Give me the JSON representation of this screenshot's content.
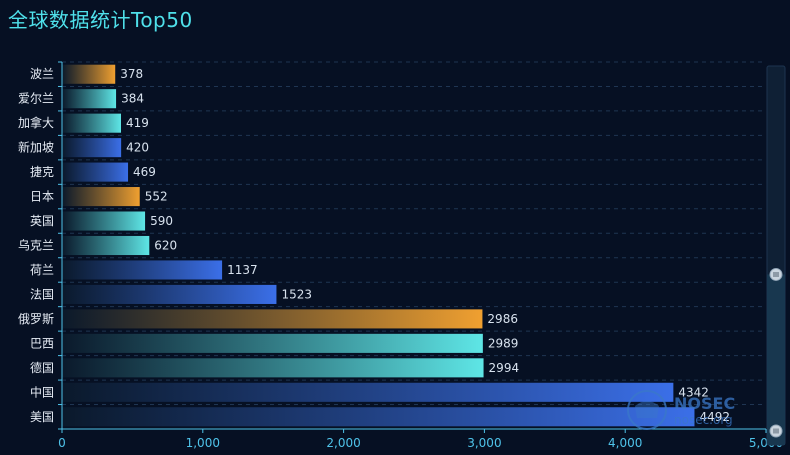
{
  "chart_data": {
    "type": "bar",
    "orientation": "horizontal",
    "title": "全球数据统计Top50",
    "categories": [
      "美国",
      "中国",
      "德国",
      "巴西",
      "俄罗斯",
      "法国",
      "荷兰",
      "乌克兰",
      "英国",
      "日本",
      "捷克",
      "新加坡",
      "加拿大",
      "爱尔兰",
      "波兰"
    ],
    "values": [
      4492,
      4342,
      2994,
      2989,
      2986,
      1523,
      1137,
      620,
      590,
      552,
      469,
      420,
      419,
      384,
      378
    ],
    "bar_colors": [
      "blue",
      "blue",
      "cyan",
      "cyan",
      "orange",
      "blue",
      "blue",
      "cyan",
      "cyan",
      "orange",
      "blue",
      "blue",
      "cyan",
      "cyan",
      "orange"
    ],
    "xlim": [
      0,
      5000
    ],
    "xticks": [
      0,
      1000,
      2000,
      3000,
      4000,
      5000
    ],
    "xtick_labels": [
      "0",
      "1,000",
      "2,000",
      "3,000",
      "4,000",
      "5,000"
    ],
    "grid": true,
    "palette": {
      "background": "#061023",
      "title": "#4fe0ea",
      "axis": "#4fc3ea",
      "orange": "#f0a030",
      "cyan": "#5ee6e6",
      "blue": "#3b6fe8"
    },
    "datazoom": {
      "orientation": "vertical",
      "position": "right",
      "start_percent": 55,
      "end_percent": 100
    }
  },
  "watermark": {
    "brand": "NOSEC",
    "sub": "nosec.org",
    "icon": "nosec-logo-icon"
  }
}
